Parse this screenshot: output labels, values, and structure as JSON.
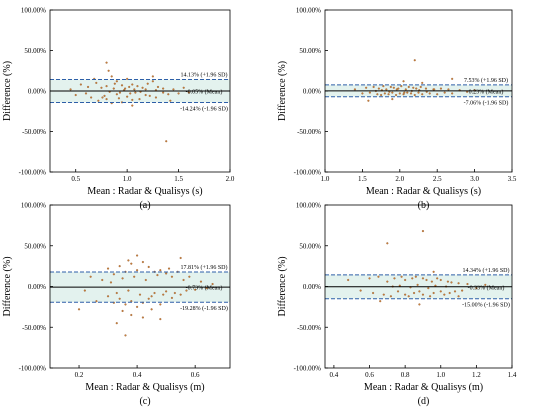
{
  "chart_data": [
    {
      "type": "scatter",
      "panel_label": "(a)",
      "xlabel": "Mean : Radar & Qualisys (s)",
      "ylabel": "Difference (%)",
      "xlim": [
        0.25,
        2.0
      ],
      "ylim": [
        -100,
        100
      ],
      "x_ticks": [
        0.5,
        1.0,
        1.5,
        2.0
      ],
      "x_tick_labels": [
        "0.5",
        "1.0",
        "1.5",
        "2.0"
      ],
      "y_ticks": [
        -100,
        -50,
        0,
        50,
        100
      ],
      "y_tick_labels": [
        "-100.00%",
        "-50.00%",
        "0.00%",
        "50.00%",
        "100.00%"
      ],
      "mean": -0.05,
      "upper_loa": 14.13,
      "lower_loa": -14.24,
      "mean_label": "-0.05% (Mean)",
      "upper_label": "14.13% (+1.96 SD)",
      "lower_label": "-14.24% (-1.96 SD)",
      "series": [
        {
          "x": [
            0.45,
            0.5,
            0.55,
            0.6,
            0.62,
            0.65,
            0.7,
            0.72,
            0.75,
            0.78,
            0.8,
            0.8,
            0.82,
            0.85,
            0.85,
            0.88,
            0.9,
            0.9,
            0.92,
            0.95,
            0.95,
            0.98,
            1.0,
            1.0,
            1.02,
            1.05,
            1.05,
            1.08,
            1.1,
            1.12,
            1.15,
            1.18,
            1.2,
            1.22,
            1.25,
            1.28,
            1.3,
            1.35,
            1.4,
            1.45,
            1.5,
            1.55,
            1.6,
            0.83,
            0.87,
            0.93,
            0.97,
            1.03,
            1.07,
            1.13,
            1.18,
            1.28,
            1.35,
            0.8,
            1.38,
            1.05,
            0.68,
            0.76,
            1.25,
            1.42
          ],
          "y": [
            2,
            -5,
            8,
            -3,
            5,
            -8,
            10,
            -12,
            4,
            -6,
            6,
            -10,
            25,
            18,
            -15,
            9,
            -4,
            12,
            -9,
            7,
            -14,
            3,
            15,
            -7,
            5,
            -11,
            8,
            -2,
            6,
            -10,
            4,
            -5,
            9,
            -6,
            12,
            -8,
            5,
            3,
            -4,
            2,
            -3,
            4,
            -2,
            -1,
            3,
            -2,
            1,
            -3,
            2,
            -1,
            2,
            1,
            -2,
            35,
            -62,
            -18,
            15,
            -8,
            18,
            -12
          ]
        }
      ]
    },
    {
      "type": "scatter",
      "panel_label": "(b)",
      "xlabel": "Mean : Radar & Qualisys (s)",
      "ylabel": "Difference (%)",
      "xlim": [
        1.0,
        3.5
      ],
      "ylim": [
        -100,
        100
      ],
      "x_ticks": [
        1.0,
        1.5,
        2.0,
        2.5,
        3.0,
        3.5
      ],
      "x_tick_labels": [
        "1.0",
        "1.5",
        "2.0",
        "2.5",
        "3.0",
        "3.5"
      ],
      "y_ticks": [
        -100,
        -50,
        0,
        50,
        100
      ],
      "y_tick_labels": [
        "-100.00%",
        "-50.00%",
        "0.00%",
        "50.00%",
        "100.00%"
      ],
      "mean": 0.23,
      "upper_loa": 7.53,
      "lower_loa": -7.06,
      "mean_label": "0.23% (Mean)",
      "upper_label": "7.53% (+1.96 SD)",
      "lower_label": "-7.06% (-1.96 SD)",
      "series": [
        {
          "x": [
            1.4,
            1.5,
            1.55,
            1.6,
            1.65,
            1.7,
            1.72,
            1.75,
            1.78,
            1.8,
            1.82,
            1.85,
            1.88,
            1.9,
            1.92,
            1.95,
            1.98,
            2.0,
            2.02,
            2.05,
            2.08,
            2.1,
            2.12,
            2.15,
            2.18,
            2.2,
            2.22,
            2.25,
            2.28,
            2.3,
            2.35,
            2.4,
            2.45,
            2.5,
            2.55,
            2.6,
            2.65,
            2.7,
            2.8,
            2.9,
            3.0,
            1.68,
            1.76,
            1.86,
            1.96,
            2.06,
            2.16,
            2.26,
            2.36,
            2.46,
            2.2,
            2.7,
            1.9,
            2.3,
            2.05,
            1.58
          ],
          "y": [
            2,
            -3,
            4,
            -2,
            5,
            -4,
            3,
            -5,
            6,
            -3,
            2,
            -4,
            5,
            -2,
            4,
            -5,
            3,
            -3,
            6,
            -4,
            2,
            -2,
            5,
            -3,
            4,
            -5,
            3,
            -2,
            5,
            -4,
            3,
            -3,
            2,
            -4,
            3,
            -2,
            2,
            -3,
            1,
            -1,
            1,
            0,
            1,
            -1,
            2,
            -2,
            0,
            1,
            -1,
            2,
            38,
            15,
            -10,
            10,
            12,
            -12
          ]
        }
      ]
    },
    {
      "type": "scatter",
      "panel_label": "(c)",
      "xlabel": "Mean : Radar & Qualisys (m)",
      "ylabel": "Difference (%)",
      "xlim": [
        0.1,
        0.72
      ],
      "ylim": [
        -100,
        100
      ],
      "x_ticks": [
        0.2,
        0.4,
        0.6
      ],
      "x_tick_labels": [
        "0.2",
        "0.4",
        "0.6"
      ],
      "y_ticks": [
        -100,
        -50,
        0,
        50,
        100
      ],
      "y_tick_labels": [
        "-100.00%",
        "-50.00%",
        "0.00%",
        "50.00%",
        "100.00%"
      ],
      "mean": -0.73,
      "upper_loa": 17.81,
      "lower_loa": -19.28,
      "mean_label": "-0.73% (Mean)",
      "upper_label": "17.81% (+1.96 SD)",
      "lower_label": "-19.28% (-1.96 SD)",
      "series": [
        {
          "x": [
            0.2,
            0.22,
            0.24,
            0.26,
            0.28,
            0.3,
            0.3,
            0.31,
            0.32,
            0.32,
            0.33,
            0.34,
            0.34,
            0.35,
            0.36,
            0.36,
            0.37,
            0.38,
            0.38,
            0.39,
            0.4,
            0.4,
            0.41,
            0.42,
            0.42,
            0.43,
            0.44,
            0.44,
            0.45,
            0.46,
            0.46,
            0.47,
            0.48,
            0.48,
            0.49,
            0.5,
            0.5,
            0.51,
            0.52,
            0.52,
            0.53,
            0.54,
            0.55,
            0.56,
            0.57,
            0.58,
            0.6,
            0.62,
            0.64,
            0.66,
            0.35,
            0.38,
            0.42,
            0.45,
            0.55,
            0.36,
            0.4,
            0.33,
            0.37,
            0.48
          ],
          "y": [
            -28,
            -5,
            12,
            -18,
            8,
            22,
            -12,
            5,
            -20,
            15,
            -8,
            25,
            -15,
            10,
            -22,
            18,
            -5,
            28,
            -18,
            12,
            -25,
            20,
            -10,
            30,
            -20,
            8,
            -15,
            24,
            -12,
            18,
            -8,
            14,
            -22,
            20,
            -10,
            16,
            -6,
            22,
            -14,
            12,
            -8,
            18,
            -10,
            8,
            -5,
            12,
            -4,
            6,
            -2,
            3,
            -30,
            -35,
            -38,
            -28,
            35,
            -60,
            38,
            -45,
            32,
            -40
          ]
        }
      ]
    },
    {
      "type": "scatter",
      "panel_label": "(d)",
      "xlabel": "Mean : Radar & Qualisys (m)",
      "ylabel": "Difference (%)",
      "xlim": [
        0.35,
        1.4
      ],
      "ylim": [
        -100,
        100
      ],
      "x_ticks": [
        0.4,
        0.6,
        0.8,
        1.0,
        1.2,
        1.4
      ],
      "x_tick_labels": [
        "0.4",
        "0.6",
        "0.8",
        "1.0",
        "1.2",
        "1.4"
      ],
      "y_ticks": [
        -100,
        -50,
        0,
        50,
        100
      ],
      "y_tick_labels": [
        "-100.00%",
        "-50.00%",
        "0.00%",
        "50.00%",
        "100.00%"
      ],
      "mean": -0.33,
      "upper_loa": 14.34,
      "lower_loa": -15.0,
      "mean_label": "-0.33% (Mean)",
      "upper_label": "14.34% (+1.96 SD)",
      "lower_label": "-15.00% (-1.96 SD)",
      "series": [
        {
          "x": [
            0.48,
            0.55,
            0.6,
            0.62,
            0.65,
            0.68,
            0.7,
            0.72,
            0.74,
            0.76,
            0.78,
            0.8,
            0.8,
            0.82,
            0.84,
            0.85,
            0.86,
            0.88,
            0.9,
            0.9,
            0.92,
            0.94,
            0.95,
            0.96,
            0.98,
            1.0,
            1.0,
            1.02,
            1.04,
            1.05,
            1.06,
            1.08,
            1.1,
            1.12,
            1.15,
            1.2,
            1.25,
            0.73,
            0.77,
            0.83,
            0.87,
            0.93,
            0.97,
            1.03,
            0.9,
            0.7,
            0.88,
            0.96,
            0.66,
            1.1
          ],
          "y": [
            8,
            -5,
            10,
            -8,
            12,
            -10,
            6,
            -12,
            10,
            -6,
            12,
            -10,
            8,
            -12,
            10,
            -8,
            12,
            -6,
            10,
            -10,
            8,
            -12,
            6,
            -8,
            10,
            -6,
            8,
            -10,
            6,
            -8,
            5,
            -6,
            4,
            -5,
            3,
            -2,
            2,
            0,
            1,
            -1,
            2,
            -2,
            1,
            0,
            68,
            53,
            -22,
            18,
            -18,
            -12
          ]
        }
      ]
    }
  ]
}
